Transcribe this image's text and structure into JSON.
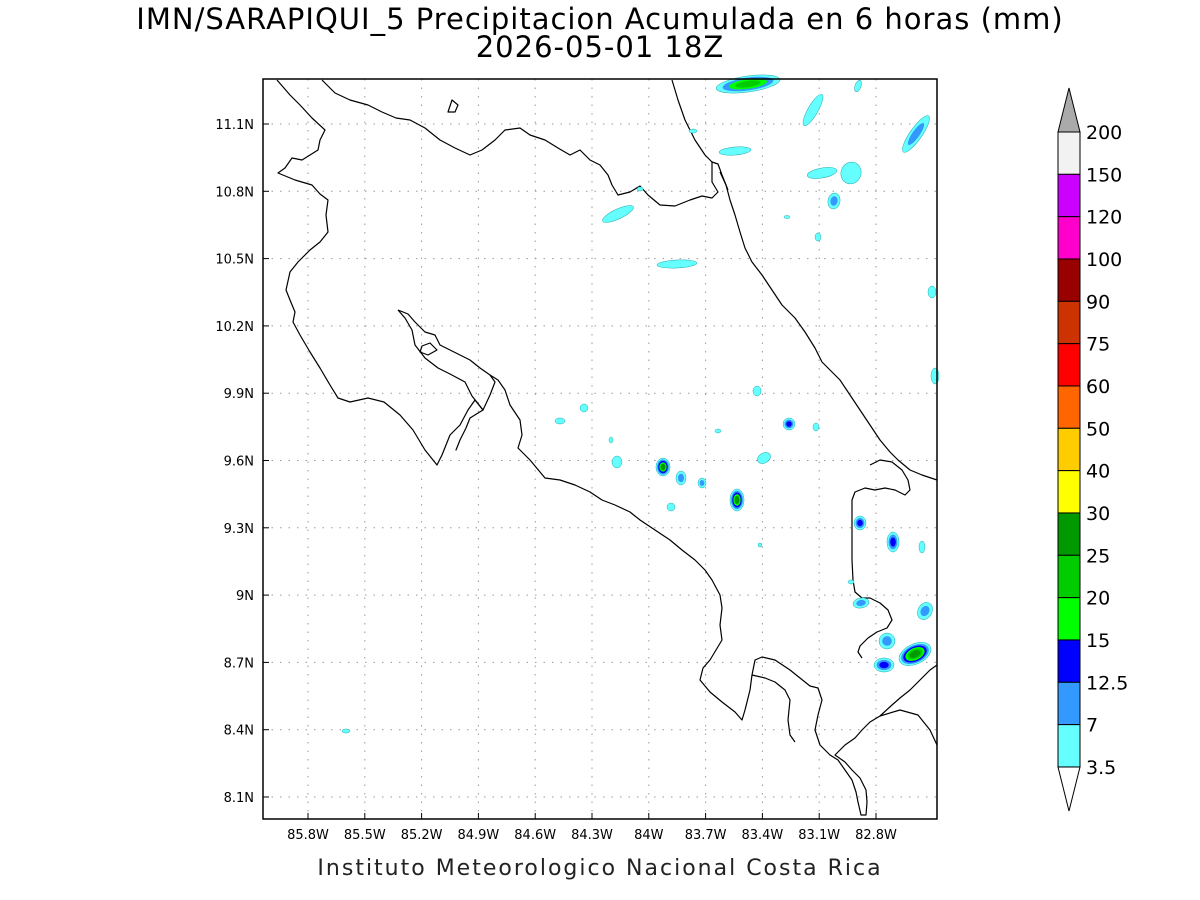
{
  "title": {
    "line1": "IMN/SARAPIQUI_5 Precipitacion Acumulada en 6 horas (mm)",
    "line2": "2026-05-01 18Z"
  },
  "credit": "Instituto Meteorologico Nacional Costa Rica",
  "map": {
    "lon_range": [
      -86.05,
      -81.95
    ],
    "lat_range": [
      8.0,
      11.3
    ],
    "lon_ticks": [
      "85.8W",
      "85.5W",
      "85.2W",
      "84.9W",
      "84.6W",
      "84.3W",
      "84W",
      "83.7W",
      "83.4W",
      "83.1W",
      "82.8W"
    ],
    "lat_ticks": [
      "11.1N",
      "10.8N",
      "10.5N",
      "10.2N",
      "9.9N",
      "9.6N",
      "9.3N",
      "9N",
      "8.7N",
      "8.4N",
      "8.1N"
    ],
    "grid": true
  },
  "colorbar": {
    "labels": [
      "3.5",
      "7",
      "12.5",
      "15",
      "20",
      "25",
      "30",
      "40",
      "50",
      "60",
      "75",
      "90",
      "100",
      "120",
      "150",
      "200"
    ],
    "colors": [
      "#66ffff",
      "#3399ff",
      "#0000ff",
      "#00ff00",
      "#00cc00",
      "#009900",
      "#ffff00",
      "#ffcc00",
      "#ff6600",
      "#ff0000",
      "#cc3300",
      "#990000",
      "#ff00cc",
      "#cc00ff",
      "#9933cc",
      "#f2f2f2",
      "#aaaaaa"
    ]
  }
}
